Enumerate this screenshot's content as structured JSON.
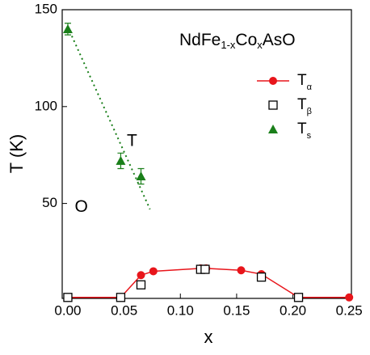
{
  "chart_data": {
    "type": "scatter",
    "annotation_parts": [
      "NdFe",
      "1-x",
      "Co",
      "x",
      "AsO"
    ],
    "region_labels": [
      {
        "text": "T",
        "x": 0.057,
        "y": 82
      },
      {
        "text": "O",
        "x": 0.012,
        "y": 48
      }
    ],
    "xlabel": "x",
    "ylabel": "T (K)",
    "xlim": [
      -0.005,
      0.252
    ],
    "ylim": [
      1,
      150
    ],
    "xticks": [
      {
        "value": 0,
        "label": "0.00"
      },
      {
        "value": 0.05,
        "label": "0.05"
      },
      {
        "value": 0.1,
        "label": "0.10"
      },
      {
        "value": 0.15,
        "label": "0.15"
      },
      {
        "value": 0.2,
        "label": "0.20"
      },
      {
        "value": 0.25,
        "label": "0.25"
      }
    ],
    "yticks": [
      50,
      100,
      150
    ],
    "series": [
      {
        "name": "T",
        "subscript": "α",
        "color": "#e8151b",
        "marker": "circle",
        "line": true,
        "x": [
          0,
          0.047,
          0.065,
          0.076,
          0.118,
          0.123,
          0.154,
          0.172,
          0.205,
          0.25
        ],
        "values": [
          1.5,
          1.5,
          13,
          15,
          16.5,
          16.5,
          15.5,
          13.5,
          1.5,
          1.5
        ]
      },
      {
        "name": "T",
        "subscript": "β",
        "color": "#000000",
        "marker": "square",
        "line": false,
        "x": [
          0,
          0.047,
          0.065,
          0.118,
          0.122,
          0.172,
          0.205
        ],
        "values": [
          1.5,
          1.5,
          8,
          16,
          16,
          12,
          1.5
        ]
      },
      {
        "name": "T",
        "subscript": "s",
        "color": "#1a7f1a",
        "marker": "triangle",
        "line": false,
        "x": [
          0,
          0.047,
          0.065
        ],
        "values": [
          140,
          72,
          64
        ],
        "errors": [
          3,
          4,
          4
        ]
      }
    ],
    "fit_line": {
      "color": "#1a7f1a",
      "x": [
        0,
        0.073
      ],
      "values": [
        141,
        47
      ]
    }
  }
}
